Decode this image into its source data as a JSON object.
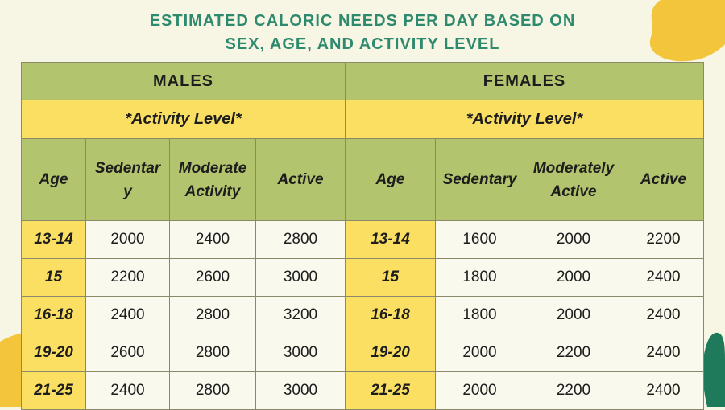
{
  "title": {
    "line1": "ESTIMATED CALORIC NEEDS PER DAY BASED ON",
    "line2": "SEX, AGE, AND ACTIVITY LEVEL"
  },
  "males": {
    "label": "MALES",
    "activity_label": "*Activity Level*",
    "columns": [
      "Age",
      "Sedentar\ny",
      "Moderate\nActivity",
      "Active"
    ]
  },
  "females": {
    "label": "FEMALES",
    "activity_label": "*Activity Level*",
    "columns": [
      "Age",
      "Sedentary",
      "Moderately\nActive",
      "Active"
    ]
  },
  "rows": [
    {
      "m_age": "13-14",
      "m_sed": "2000",
      "m_mod": "2400",
      "m_act": "2800",
      "f_age": "13-14",
      "f_sed": "1600",
      "f_mod": "2000",
      "f_act": "2200"
    },
    {
      "m_age": "15",
      "m_sed": "2200",
      "m_mod": "2600",
      "m_act": "3000",
      "f_age": "15",
      "f_sed": "1800",
      "f_mod": "2000",
      "f_act": "2400"
    },
    {
      "m_age": "16-18",
      "m_sed": "2400",
      "m_mod": "2800",
      "m_act": "3200",
      "f_age": "16-18",
      "f_sed": "1800",
      "f_mod": "2000",
      "f_act": "2400"
    },
    {
      "m_age": "19-20",
      "m_sed": "2600",
      "m_mod": "2800",
      "m_act": "3000",
      "f_age": "19-20",
      "f_sed": "2000",
      "f_mod": "2200",
      "f_act": "2400"
    },
    {
      "m_age": "21-25",
      "m_sed": "2400",
      "m_mod": "2800",
      "m_act": "3000",
      "f_age": "21-25",
      "f_sed": "2000",
      "f_mod": "2200",
      "f_act": "2400"
    }
  ],
  "colors": {
    "title": "#2e8a6e",
    "header_green": "#b3c46e",
    "header_yellow": "#fbdf62",
    "background": "#f7f5e3",
    "blob_yellow": "#f3c53a",
    "blob_teal": "#1f7a5c"
  }
}
